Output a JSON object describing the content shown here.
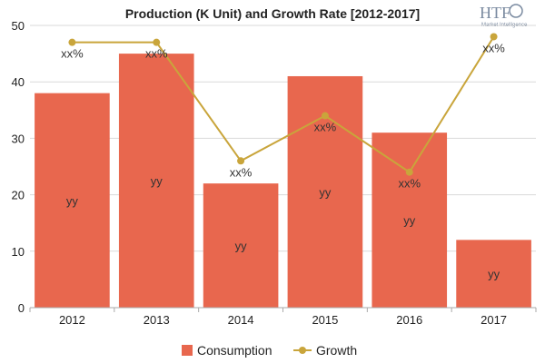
{
  "logo": {
    "text": "HTF",
    "subtext": "Market Intelligence"
  },
  "chart_data": {
    "type": "bar",
    "title": "Production (K Unit) and Growth Rate [2012-2017]",
    "categories": [
      "2012",
      "2013",
      "2014",
      "2015",
      "2016",
      "2017"
    ],
    "ylim": [
      0,
      50
    ],
    "yticks": [
      0,
      10,
      20,
      30,
      40,
      50
    ],
    "grid": true,
    "legend_position": "bottom",
    "series": [
      {
        "name": "Consumption",
        "type": "bar",
        "color": "#e8674e",
        "values": [
          38,
          45,
          22,
          41,
          31,
          12
        ],
        "labels": [
          "yy",
          "yy",
          "yy",
          "yy",
          "yy",
          "yy"
        ]
      },
      {
        "name": "Growth",
        "type": "line",
        "color": "#c9a53b",
        "values": [
          47,
          47,
          26,
          34,
          24,
          48
        ],
        "labels": [
          "xx%",
          "xx%",
          "xx%",
          "xx%",
          "xx%",
          "xx%"
        ]
      }
    ]
  }
}
